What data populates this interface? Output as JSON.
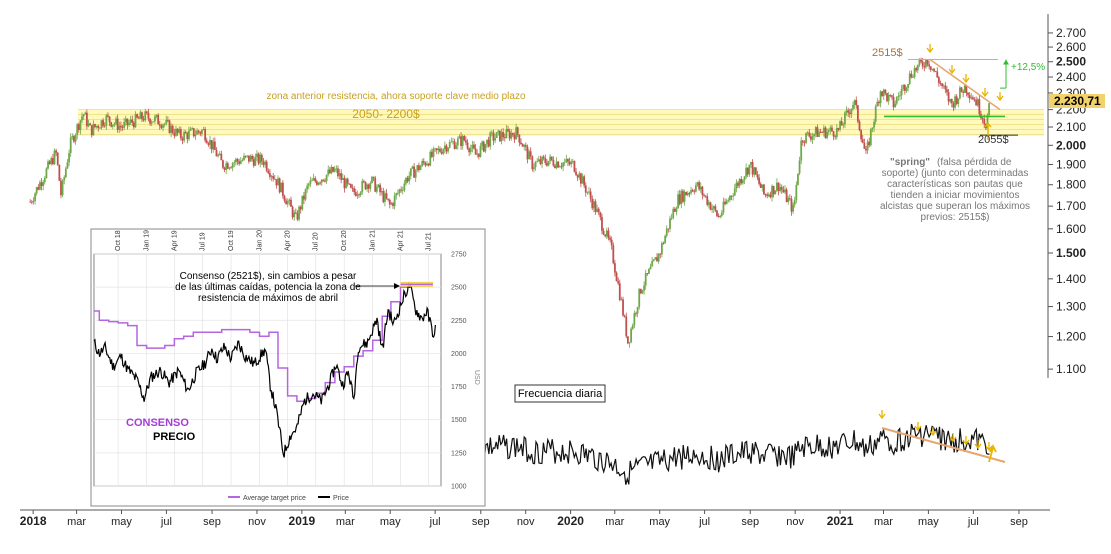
{
  "chart_data": [
    {
      "type": "candlestick",
      "title": "",
      "y_axis": {
        "scale": "log",
        "range": [
          1080,
          2780
        ],
        "ticks": [
          "2.700",
          "2.600",
          "2.500",
          "2.400",
          "2.300",
          "2.200",
          "2.100",
          "2.000",
          "1.900",
          "1.800",
          "1.700",
          "1.600",
          "1.500",
          "1.400",
          "1.300",
          "1.200",
          "1.100"
        ],
        "tick_values": [
          2700,
          2600,
          2500,
          2400,
          2300,
          2200,
          2100,
          2000,
          1900,
          1800,
          1700,
          1600,
          1500,
          1400,
          1300,
          1200,
          1100
        ],
        "bold_ticks": [
          "2.500",
          "2.000",
          "1.500"
        ]
      },
      "x_axis": {
        "labels": [
          {
            "label": "2018",
            "date": "2018-01-01",
            "bold": true
          },
          {
            "label": "mar",
            "date": "2018-03-01"
          },
          {
            "label": "may",
            "date": "2018-05-01"
          },
          {
            "label": "jul",
            "date": "2018-07-01"
          },
          {
            "label": "sep",
            "date": "2018-09-01"
          },
          {
            "label": "nov",
            "date": "2018-11-01"
          },
          {
            "label": "2019",
            "date": "2019-01-01",
            "bold": true
          },
          {
            "label": "mar",
            "date": "2019-03-01"
          },
          {
            "label": "may",
            "date": "2019-05-01"
          },
          {
            "label": "jul",
            "date": "2019-07-01"
          },
          {
            "label": "sep",
            "date": "2019-09-01"
          },
          {
            "label": "nov",
            "date": "2019-11-01"
          },
          {
            "label": "2020",
            "date": "2020-01-01",
            "bold": true
          },
          {
            "label": "mar",
            "date": "2020-03-01"
          },
          {
            "label": "may",
            "date": "2020-05-01"
          },
          {
            "label": "jul",
            "date": "2020-07-01"
          },
          {
            "label": "sep",
            "date": "2020-09-01"
          },
          {
            "label": "nov",
            "date": "2020-11-01"
          },
          {
            "label": "2021",
            "date": "2021-01-01",
            "bold": true
          },
          {
            "label": "mar",
            "date": "2021-03-01"
          },
          {
            "label": "may",
            "date": "2021-05-01"
          },
          {
            "label": "jul",
            "date": "2021-07-01"
          },
          {
            "label": "sep",
            "date": "2021-09-01"
          }
        ],
        "range": [
          "2017-12-25",
          "2021-10-05"
        ]
      },
      "current_price_label": "2.230,71",
      "current_price_value": 2230.71,
      "price_path": [
        [
          "2017-12-28",
          1720
        ],
        [
          "2018-01-15",
          1840
        ],
        [
          "2018-02-01",
          1960
        ],
        [
          "2018-02-08",
          1750
        ],
        [
          "2018-02-20",
          2000
        ],
        [
          "2018-03-10",
          2180
        ],
        [
          "2018-03-20",
          2080
        ],
        [
          "2018-04-10",
          2150
        ],
        [
          "2018-05-01",
          2100
        ],
        [
          "2018-06-01",
          2160
        ],
        [
          "2018-06-25",
          2130
        ],
        [
          "2018-07-20",
          2050
        ],
        [
          "2018-08-20",
          2080
        ],
        [
          "2018-09-15",
          1900
        ],
        [
          "2018-10-20",
          1930
        ],
        [
          "2018-11-10",
          1920
        ],
        [
          "2018-12-01",
          1800
        ],
        [
          "2018-12-24",
          1640
        ],
        [
          "2019-01-10",
          1800
        ],
        [
          "2019-02-15",
          1870
        ],
        [
          "2019-03-10",
          1760
        ],
        [
          "2019-04-05",
          1820
        ],
        [
          "2019-05-01",
          1700
        ],
        [
          "2019-05-25",
          1840
        ],
        [
          "2019-06-20",
          1920
        ],
        [
          "2019-07-15",
          2000
        ],
        [
          "2019-08-10",
          2030
        ],
        [
          "2019-08-25",
          1950
        ],
        [
          "2019-09-15",
          2040
        ],
        [
          "2019-10-20",
          2070
        ],
        [
          "2019-11-10",
          1900
        ],
        [
          "2019-12-01",
          1920
        ],
        [
          "2020-01-05",
          1900
        ],
        [
          "2020-02-05",
          1680
        ],
        [
          "2020-02-25",
          1520
        ],
        [
          "2020-03-19",
          1180
        ],
        [
          "2020-04-05",
          1360
        ],
        [
          "2020-05-01",
          1500
        ],
        [
          "2020-05-25",
          1730
        ],
        [
          "2020-06-20",
          1800
        ],
        [
          "2020-07-20",
          1650
        ],
        [
          "2020-08-10",
          1780
        ],
        [
          "2020-09-01",
          1900
        ],
        [
          "2020-09-20",
          1750
        ],
        [
          "2020-10-10",
          1800
        ],
        [
          "2020-10-30",
          1680
        ],
        [
          "2020-11-10",
          2040
        ],
        [
          "2020-12-01",
          2070
        ],
        [
          "2020-12-30",
          2080
        ],
        [
          "2021-01-20",
          2250
        ],
        [
          "2021-02-05",
          1940
        ],
        [
          "2021-02-25",
          2320
        ],
        [
          "2021-03-15",
          2230
        ],
        [
          "2021-04-10",
          2440
        ],
        [
          "2021-04-30",
          2515
        ],
        [
          "2021-05-15",
          2380
        ],
        [
          "2021-06-01",
          2230
        ],
        [
          "2021-06-20",
          2340
        ],
        [
          "2021-07-05",
          2250
        ],
        [
          "2021-07-18",
          2120
        ],
        [
          "2021-07-24",
          2230
        ]
      ],
      "zone": {
        "low": 2050,
        "high": 2200,
        "label": "2050- 2200$",
        "caption": "zona anterior resistencia, ahora soporte clave medio plazo"
      },
      "annotations": {
        "max_label": "2515$",
        "max_value": 2515,
        "low_label": "2055$",
        "low_value": 2055,
        "support_value": 2160,
        "gain_label": "+12,5%",
        "spring_title": "\"spring\"",
        "spring_lines": [
          "(falsa pérdida de",
          "soporte) (junto con determinadas",
          "características son pautas que",
          "tienden a iniciar movimientos",
          "alcistas que superan los máximos",
          "previos: 2515$)"
        ],
        "spring_first_line": "(falsa pérdida de"
      },
      "colors": {
        "up": "#6fa84a",
        "down": "#c0504d",
        "zone": "#fff7a8",
        "support": "#2fbf2f",
        "resistance": "#e6a670",
        "arrow": "#e8b500",
        "gain": "#2fbf2f"
      }
    },
    {
      "type": "line",
      "label": "Frecuencia diaria",
      "series": [
        {
          "name": "",
          "x": [
            "2019-07-20",
            "2021-07-24"
          ],
          "note": "oscillator"
        }
      ]
    },
    {
      "type": "line",
      "title": "",
      "annotation": "Consenso (2521$), sin cambios a pesar de las últimas caídas, potencia la zona de resistencia de máximos de abril",
      "annotation_lines": [
        "Consenso (2521$), sin cambios a pesar",
        "de las últimas caídas, potencia la zona de",
        "resistencia de máximos de abril"
      ],
      "x_ticks": [
        "Oct 18",
        "Jan 19",
        "Apr 19",
        "Jul 19",
        "Oct 19",
        "Jan 20",
        "Apr 20",
        "Jul 20",
        "Oct 20",
        "Jan 21",
        "Apr 21",
        "Jul 21"
      ],
      "y_ticks": [
        "2750",
        "2500",
        "2250",
        "2000",
        "1750",
        "1500",
        "1250",
        "1000"
      ],
      "y_tick_values": [
        2750,
        2500,
        2250,
        2000,
        1750,
        1500,
        1250,
        1000
      ],
      "ylabel": "USD",
      "ylim": [
        1000,
        2750
      ],
      "legend": [
        "Average target price",
        "Price"
      ],
      "side_labels": [
        "CONSENSO",
        "PRECIO"
      ],
      "series": [
        {
          "name": "Average target price",
          "color": "#b565e0",
          "points": [
            [
              "2018-07-15",
              2320
            ],
            [
              "2018-08-01",
              2250
            ],
            [
              "2018-09-01",
              2240
            ],
            [
              "2018-10-01",
              2230
            ],
            [
              "2018-11-01",
              2210
            ],
            [
              "2018-12-01",
              2060
            ],
            [
              "2019-01-01",
              2040
            ],
            [
              "2019-02-01",
              2040
            ],
            [
              "2019-03-01",
              2060
            ],
            [
              "2019-04-01",
              2110
            ],
            [
              "2019-05-01",
              2130
            ],
            [
              "2019-06-01",
              2160
            ],
            [
              "2019-07-01",
              2160
            ],
            [
              "2019-08-01",
              2160
            ],
            [
              "2019-09-01",
              2180
            ],
            [
              "2019-10-01",
              2180
            ],
            [
              "2019-11-01",
              2180
            ],
            [
              "2019-12-01",
              2160
            ],
            [
              "2020-01-01",
              2130
            ],
            [
              "2020-02-01",
              2160
            ],
            [
              "2020-03-01",
              1890
            ],
            [
              "2020-04-01",
              1680
            ],
            [
              "2020-05-01",
              1640
            ],
            [
              "2020-06-01",
              1660
            ],
            [
              "2020-07-01",
              1700
            ],
            [
              "2020-08-01",
              1780
            ],
            [
              "2020-09-01",
              1860
            ],
            [
              "2020-10-01",
              1900
            ],
            [
              "2020-11-01",
              1980
            ],
            [
              "2020-12-01",
              2020
            ],
            [
              "2021-01-01",
              2100
            ],
            [
              "2021-02-01",
              2280
            ],
            [
              "2021-03-01",
              2390
            ],
            [
              "2021-04-01",
              2500
            ],
            [
              "2021-05-01",
              2521
            ],
            [
              "2021-07-15",
              2521
            ]
          ]
        },
        {
          "name": "Price",
          "color": "#000000",
          "points": [
            [
              "2018-07-15",
              2080
            ],
            [
              "2018-08-01",
              2000
            ],
            [
              "2018-08-20",
              2040
            ],
            [
              "2018-09-15",
              1900
            ],
            [
              "2018-10-10",
              1980
            ],
            [
              "2018-11-01",
              1880
            ],
            [
              "2018-12-01",
              1800
            ],
            [
              "2018-12-24",
              1660
            ],
            [
              "2019-01-15",
              1820
            ],
            [
              "2019-02-15",
              1870
            ],
            [
              "2019-03-15",
              1780
            ],
            [
              "2019-04-15",
              1870
            ],
            [
              "2019-05-15",
              1720
            ],
            [
              "2019-06-10",
              1850
            ],
            [
              "2019-07-10",
              1930
            ],
            [
              "2019-08-01",
              2040
            ],
            [
              "2019-08-15",
              1960
            ],
            [
              "2019-09-10",
              2050
            ],
            [
              "2019-10-01",
              1960
            ],
            [
              "2019-10-25",
              2080
            ],
            [
              "2019-11-15",
              1980
            ],
            [
              "2019-12-15",
              1920
            ],
            [
              "2020-01-20",
              2030
            ],
            [
              "2020-02-05",
              1760
            ],
            [
              "2020-02-25",
              1560
            ],
            [
              "2020-03-19",
              1240
            ],
            [
              "2020-04-10",
              1380
            ],
            [
              "2020-05-01",
              1440
            ],
            [
              "2020-05-25",
              1640
            ],
            [
              "2020-06-20",
              1700
            ],
            [
              "2020-07-20",
              1640
            ],
            [
              "2020-08-15",
              1780
            ],
            [
              "2020-09-05",
              1920
            ],
            [
              "2020-09-25",
              1760
            ],
            [
              "2020-10-15",
              1860
            ],
            [
              "2020-11-01",
              1650
            ],
            [
              "2020-11-15",
              2050
            ],
            [
              "2020-12-15",
              2080
            ],
            [
              "2021-01-15",
              2260
            ],
            [
              "2021-02-01",
              2020
            ],
            [
              "2021-02-20",
              2330
            ],
            [
              "2021-03-10",
              2220
            ],
            [
              "2021-04-15",
              2450
            ],
            [
              "2021-04-30",
              2515
            ],
            [
              "2021-05-20",
              2330
            ],
            [
              "2021-06-10",
              2260
            ],
            [
              "2021-06-25",
              2320
            ],
            [
              "2021-07-10",
              2200
            ],
            [
              "2021-07-20",
              2120
            ],
            [
              "2021-07-25",
              2230
            ]
          ]
        }
      ]
    }
  ]
}
